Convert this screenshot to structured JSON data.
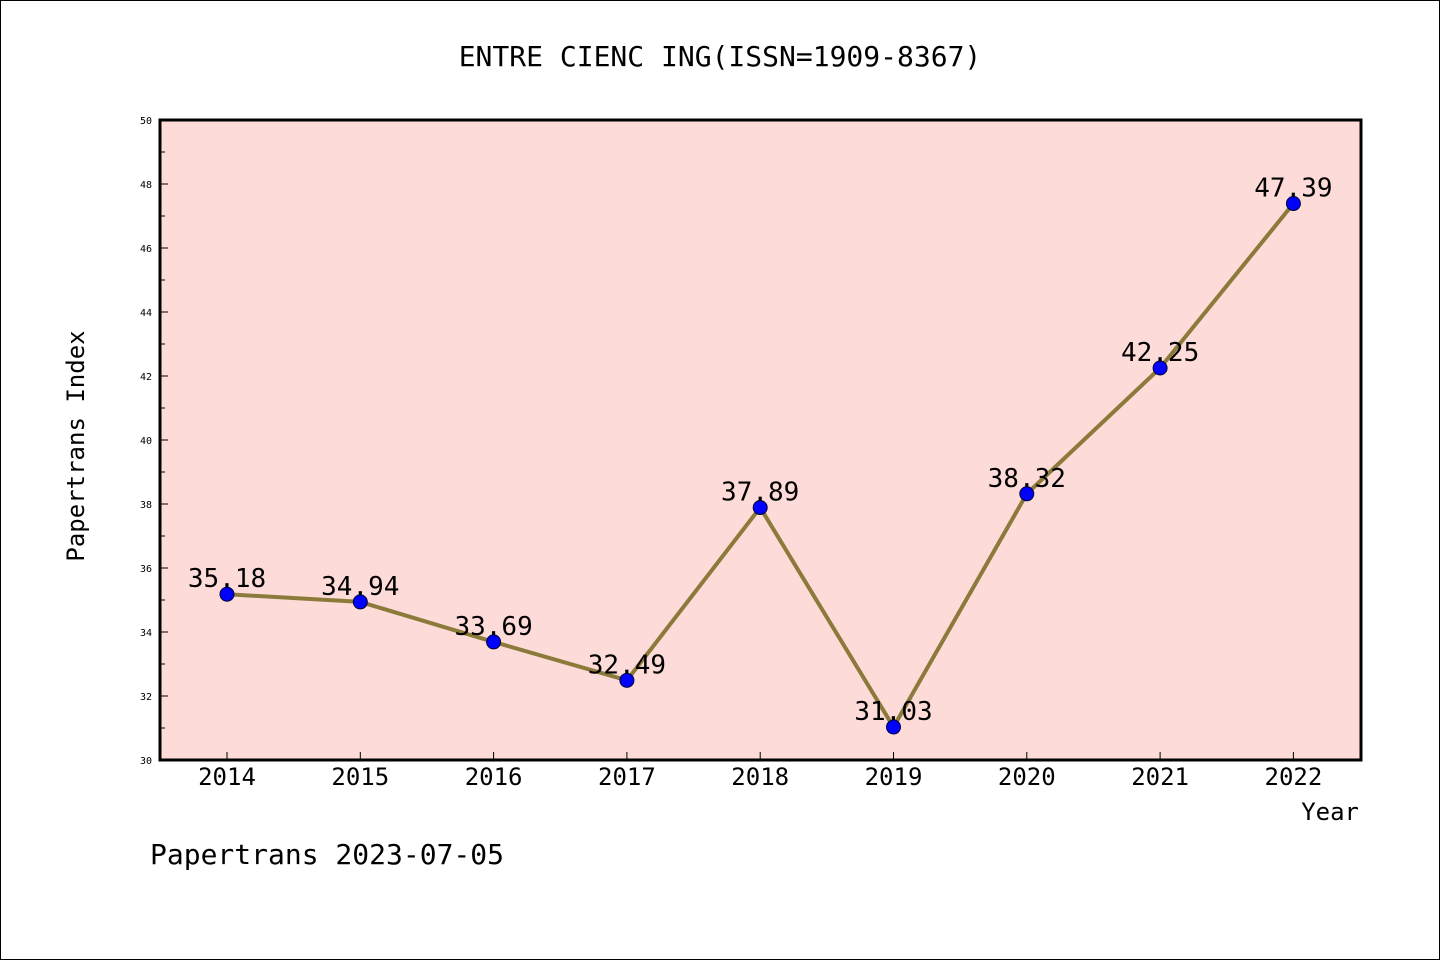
{
  "chart_data": {
    "type": "line",
    "title": "ENTRE CIENC ING(ISSN=1909-8367)",
    "xlabel": "Year",
    "ylabel": "Papertrans Index",
    "categories": [
      "2014",
      "2015",
      "2016",
      "2017",
      "2018",
      "2019",
      "2020",
      "2021",
      "2022"
    ],
    "values": [
      35.18,
      34.94,
      33.69,
      32.49,
      37.89,
      31.03,
      38.32,
      42.25,
      47.39
    ],
    "data_labels": [
      "35.18",
      "34.94",
      "33.69",
      "32.49",
      "37.89",
      "31.03",
      "38.32",
      "42.25",
      "47.39"
    ],
    "ylim": [
      30,
      50
    ],
    "yticks": [
      "30",
      "32",
      "34",
      "36",
      "38",
      "40",
      "42",
      "44",
      "46",
      "48",
      "50"
    ],
    "grid": false,
    "legend": "none",
    "colors": {
      "plot_background": "#fddbd8",
      "line": "#8b7a3a",
      "marker": "#0000ff"
    }
  },
  "footer": {
    "stamp": "Papertrans 2023-07-05"
  }
}
